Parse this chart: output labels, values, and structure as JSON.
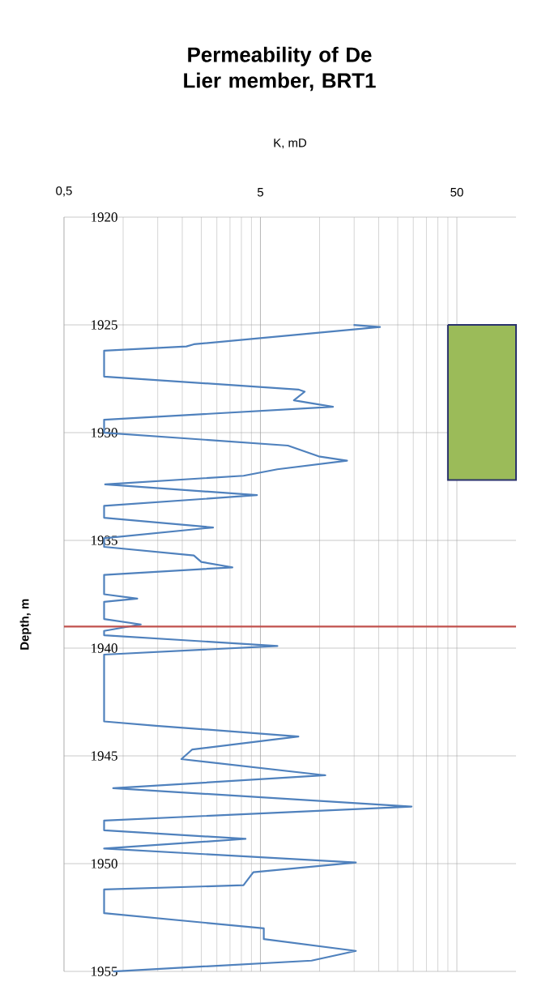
{
  "chart_data": {
    "type": "line",
    "title": "Permeability of De Lier member, BRT1",
    "xlabel": "K, mD",
    "ylabel": "Depth, m",
    "log": "x",
    "grid": true,
    "xlim": [
      0.5,
      100
    ],
    "ylim": [
      1955,
      1920
    ],
    "xticks": [
      {
        "value": 0.5,
        "label": "0,5"
      },
      5,
      50
    ],
    "yticks": [
      1920,
      1925,
      1930,
      1935,
      1940,
      1945,
      1950,
      1955
    ],
    "series": [
      {
        "color": "#4f81bd",
        "x": [
          14.9,
          20.3,
          2.29,
          2.1,
          0.8,
          0.8,
          7.8,
          8.4,
          7.4,
          11.7,
          0.8,
          0.8,
          6.9,
          9.9,
          13.8,
          6.1,
          4.1,
          0.81,
          4.8,
          0.8,
          0.8,
          2.87,
          0.8,
          0.8,
          2.29,
          2.5,
          3.6,
          0.8,
          0.8,
          1.18,
          0.8,
          0.8,
          1.23,
          0.8,
          0.8,
          6.1,
          0.8,
          0.8,
          1.47,
          7.8,
          2.25,
          1.98,
          10.7,
          0.89,
          29.4,
          0.8,
          0.8,
          4.2,
          0.8,
          15.3,
          4.6,
          4.1,
          0.8,
          0.8,
          5.2,
          5.2,
          15.3,
          9.1,
          0.89
        ],
        "values": [
          1925.0,
          1925.1,
          1925.9,
          1926.0,
          1926.2,
          1927.4,
          1928.0,
          1928.1,
          1928.5,
          1928.8,
          1929.4,
          1930.0,
          1930.6,
          1931.1,
          1931.3,
          1931.7,
          1932.0,
          1932.4,
          1932.9,
          1933.4,
          1933.95,
          1934.4,
          1934.9,
          1935.3,
          1935.7,
          1936.0,
          1936.25,
          1936.6,
          1937.5,
          1937.7,
          1937.85,
          1938.65,
          1938.9,
          1939.2,
          1939.4,
          1939.9,
          1940.3,
          1943.4,
          1943.6,
          1944.1,
          1944.7,
          1945.15,
          1945.9,
          1946.5,
          1947.35,
          1948.0,
          1948.45,
          1948.85,
          1949.3,
          1949.95,
          1950.4,
          1951.0,
          1951.2,
          1952.3,
          1953.0,
          1953.5,
          1954.05,
          1954.5,
          1955.0
        ]
      },
      {
        "type": "area",
        "color": "#9bbb59",
        "x": [
          45,
          100,
          100,
          45,
          45
        ],
        "values": [
          1925,
          1925,
          1932.2,
          1932.2,
          1925
        ]
      }
    ],
    "ref_lines": [
      {
        "axis": "y",
        "value": 1939,
        "color": "#c0504d"
      }
    ]
  }
}
